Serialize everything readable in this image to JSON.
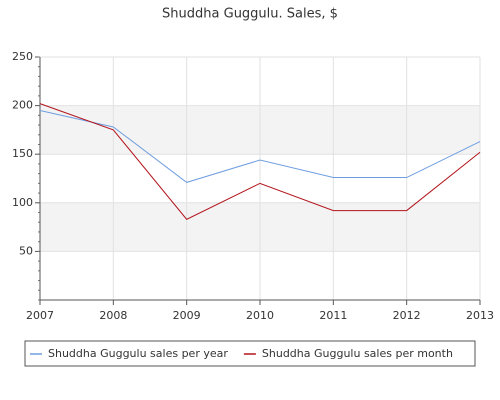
{
  "chart_data": {
    "type": "line",
    "title": "Shuddha Guggulu. Sales, $",
    "x": [
      2007,
      2008,
      2009,
      2010,
      2011,
      2012,
      2013
    ],
    "xlim": [
      2007,
      2013
    ],
    "xticks": [
      2007,
      2008,
      2009,
      2010,
      2011,
      2012,
      2013
    ],
    "ylim": [
      0,
      250
    ],
    "yticks": [
      50,
      100,
      150,
      200,
      250
    ],
    "grid": true,
    "series": [
      {
        "name": "Shuddha Guggulu sales per year",
        "color": "#6f9ee0",
        "values": [
          195,
          178,
          121,
          144,
          126,
          126,
          163
        ]
      },
      {
        "name": "Shuddha Guggulu sales per month",
        "color": "#b2141c",
        "values": [
          202,
          175,
          83,
          120,
          92,
          92,
          152
        ]
      }
    ]
  }
}
